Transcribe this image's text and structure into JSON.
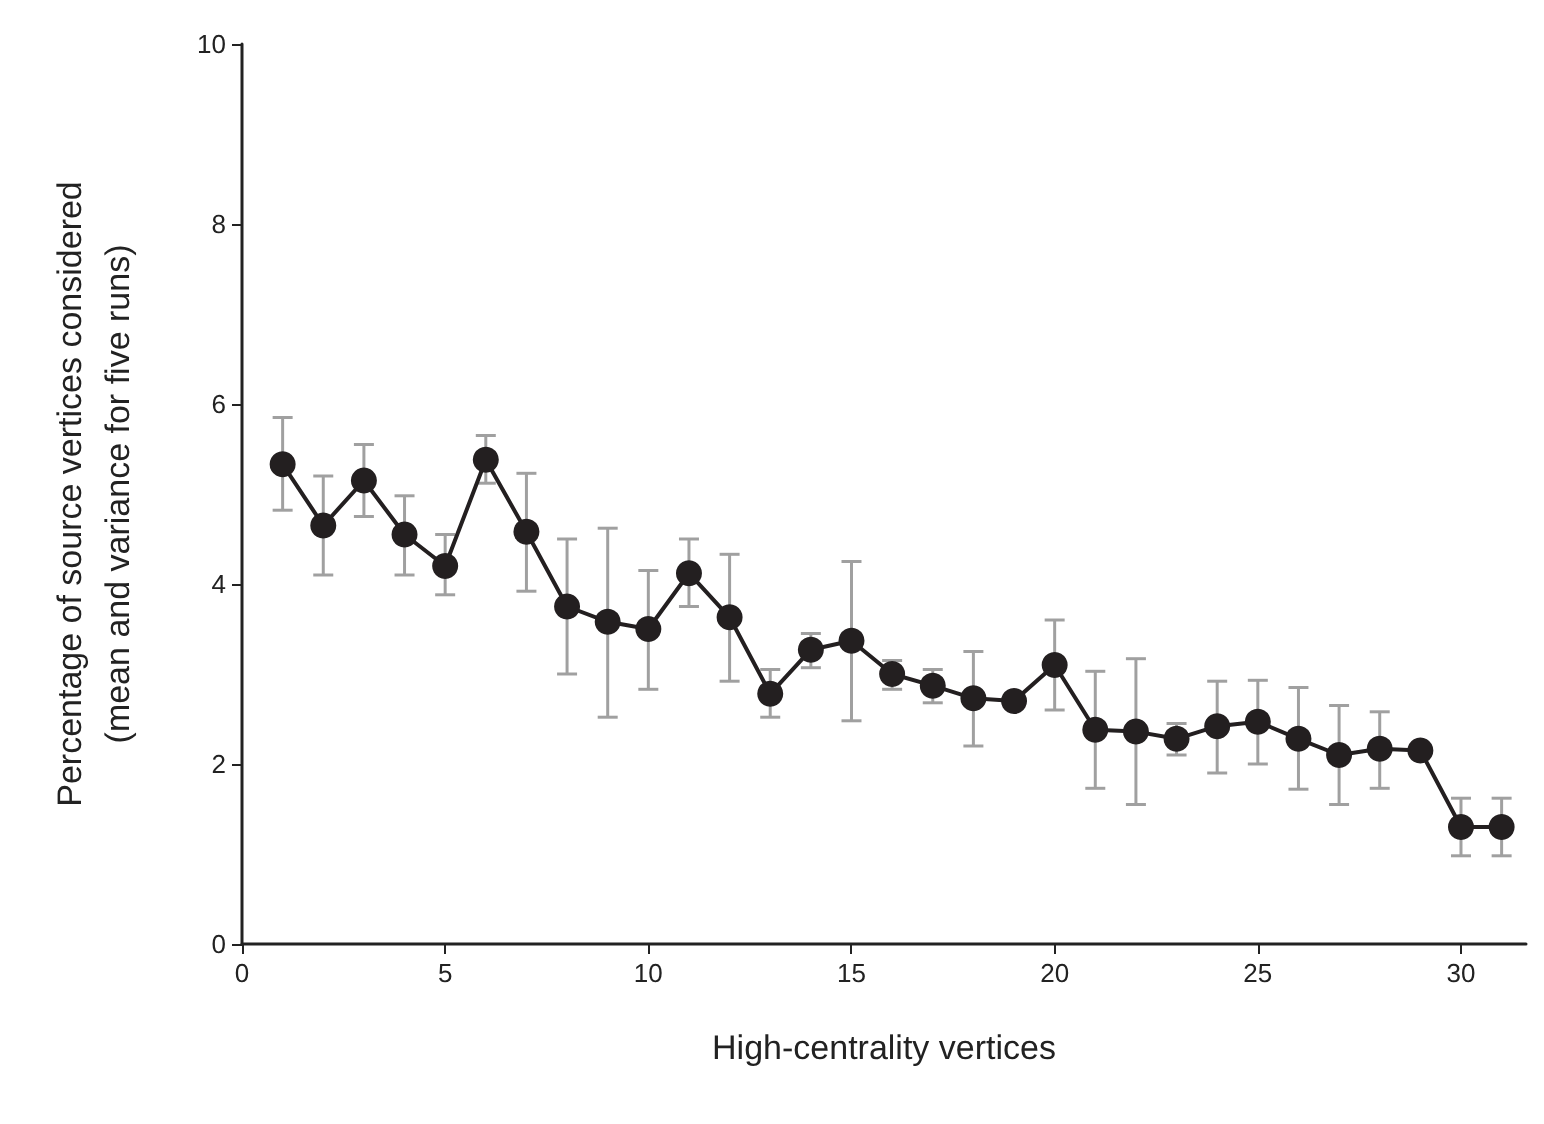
{
  "chart_data": {
    "type": "line",
    "xlabel": "High-centrality vertices",
    "ylabel": "Percentage of source vertices considered\n(mean and variance for five runs)",
    "x": [
      1,
      2,
      3,
      4,
      5,
      6,
      7,
      8,
      9,
      10,
      11,
      12,
      13,
      14,
      15,
      16,
      17,
      18,
      19,
      20,
      21,
      22,
      23,
      24,
      25,
      26,
      27,
      28,
      29,
      30,
      31
    ],
    "series": [
      {
        "color": "#231f20",
        "values": [
          5.33,
          4.65,
          5.15,
          4.55,
          4.2,
          5.38,
          4.58,
          3.75,
          3.58,
          3.5,
          4.12,
          3.63,
          2.78,
          3.27,
          3.37,
          3.0,
          2.87,
          2.73,
          2.7,
          3.1,
          2.38,
          2.36,
          2.28,
          2.42,
          2.47,
          2.28,
          2.1,
          2.17,
          2.15,
          1.3,
          1.3
        ],
        "errors": [
          [
            4.82,
            5.85
          ],
          [
            4.1,
            5.2
          ],
          [
            4.75,
            5.55
          ],
          [
            4.1,
            4.98
          ],
          [
            3.88,
            4.55
          ],
          [
            5.12,
            5.65
          ],
          [
            3.92,
            5.23
          ],
          [
            3.0,
            4.5
          ],
          [
            2.52,
            4.62
          ],
          [
            2.83,
            4.15
          ],
          [
            3.75,
            4.5
          ],
          [
            2.92,
            4.33
          ],
          [
            2.52,
            3.05
          ],
          [
            3.07,
            3.45
          ],
          [
            2.48,
            4.25
          ],
          [
            2.83,
            3.15
          ],
          [
            2.68,
            3.05
          ],
          [
            2.2,
            3.25
          ],
          null,
          [
            2.6,
            3.6
          ],
          [
            1.73,
            3.03
          ],
          [
            1.55,
            3.17
          ],
          [
            2.1,
            2.45
          ],
          [
            1.9,
            2.92
          ],
          [
            2.0,
            2.93
          ],
          [
            1.72,
            2.85
          ],
          [
            1.55,
            2.65
          ],
          [
            1.73,
            2.58
          ],
          null,
          [
            0.98,
            1.62
          ],
          [
            0.98,
            1.62
          ]
        ]
      }
    ],
    "xlim": [
      0,
      31.6
    ],
    "xticks": [
      0,
      5,
      10,
      15,
      20,
      25,
      30
    ],
    "ylim": [
      0,
      10
    ],
    "yticks": [
      0,
      2,
      4,
      6,
      8,
      10
    ],
    "grid": false,
    "marker": "circle",
    "line_style": "solid"
  }
}
